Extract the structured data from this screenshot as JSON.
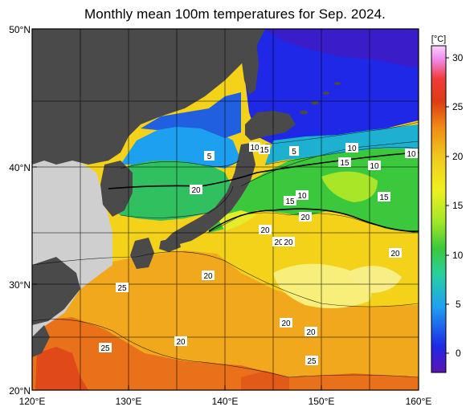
{
  "title": "Monthly mean 100m temperatures for Sep. 2024.",
  "map": {
    "lat_labels": [
      "50°N",
      "40°N",
      "30°N",
      "20°N"
    ],
    "lon_labels": [
      "120°E",
      "130°E",
      "140°E",
      "150°E",
      "160°E"
    ],
    "land_color": "#4a4a4a",
    "missing_color": "#cfcfcf",
    "contour_labels": [
      "5",
      "10",
      "15",
      "5",
      "10",
      "15",
      "10",
      "10",
      "15",
      "15",
      "10",
      "20",
      "20",
      "20",
      "20",
      "20",
      "20",
      "25",
      "20",
      "20",
      "25",
      "20",
      "25",
      "20"
    ]
  },
  "colorbar": {
    "unit": "[°C]",
    "ticks": [
      "30",
      "25",
      "20",
      "15",
      "10",
      "5",
      "0"
    ],
    "stops": [
      "#5a14b4",
      "#1e28e6",
      "#1ea0f0",
      "#28d0a0",
      "#3cc83c",
      "#a0e628",
      "#f0f01e",
      "#f0c81e",
      "#f08c14",
      "#dc3c14",
      "#f03c3c",
      "#f08cf0",
      "#fad2fa"
    ]
  }
}
